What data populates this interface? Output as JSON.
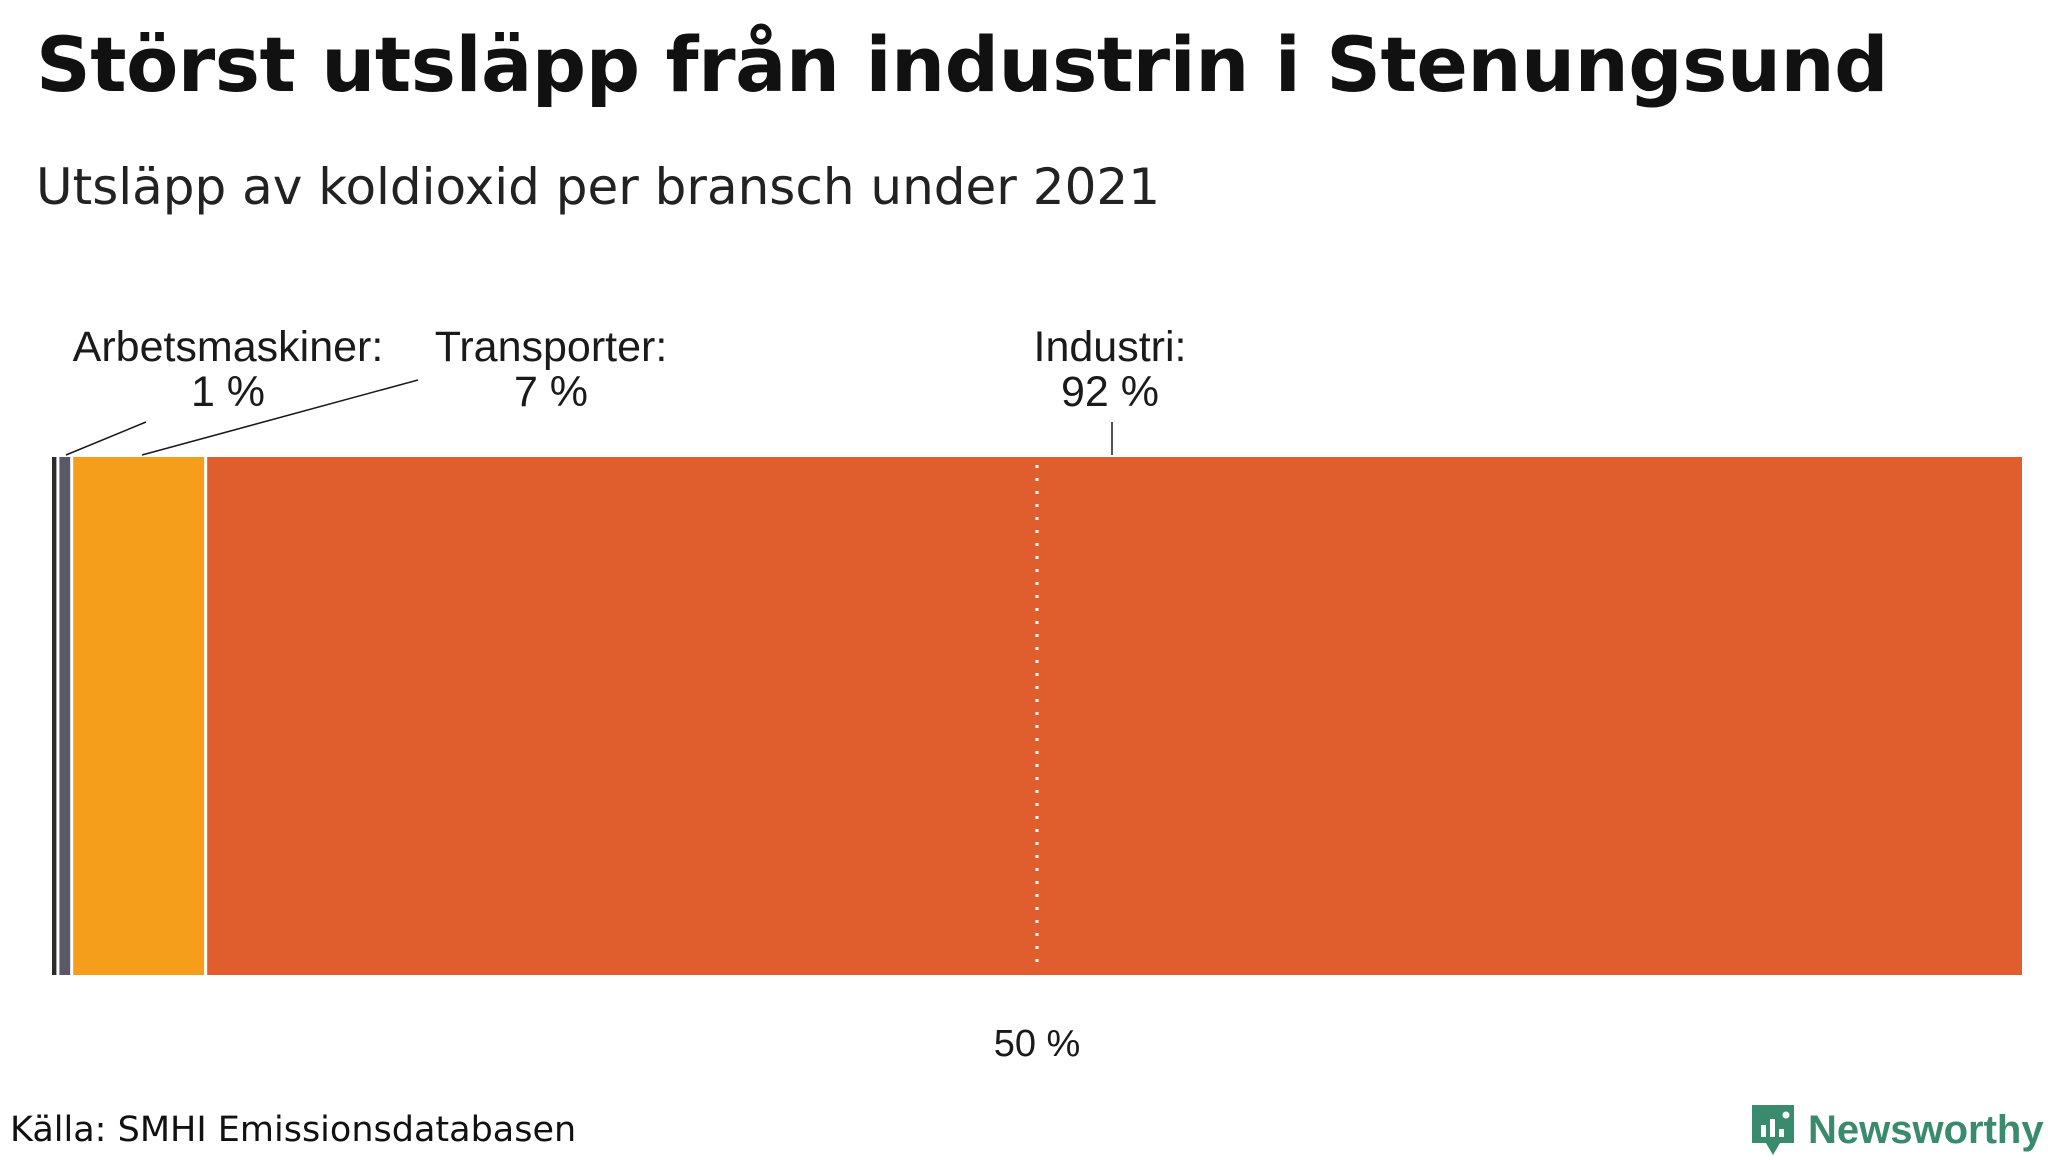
{
  "title": "Störst utsläpp från industrin i Stenungsund",
  "subtitle": "Utsläpp av koldioxid per bransch under 2021",
  "source": "Källa: SMHI Emissionsdatabasen",
  "brand": {
    "name": "Newsworthy",
    "icon": "newsworthy-logo-icon",
    "color": "#3a8a6e"
  },
  "chart_data": {
    "type": "bar",
    "orientation": "horizontal-stacked-100",
    "title": "Störst utsläpp från industrin i Stenungsund",
    "subtitle": "Utsläpp av koldioxid per bransch under 2021",
    "xlim": [
      0,
      100
    ],
    "unit": "%",
    "segments": [
      {
        "name": "",
        "value": 0.3,
        "label": "",
        "color": "#2b2b2b"
      },
      {
        "name": "Arbetsmaskiner",
        "value": 0.7,
        "label": "Arbetsmaskiner:",
        "value_label": "1 %",
        "color": "#5a5a66"
      },
      {
        "name": "Transporter",
        "value": 6.8,
        "label": "Transporter:",
        "value_label": "7 %",
        "color": "#f59e1b"
      },
      {
        "name": "Industri",
        "value": 92.2,
        "label": "Industri:",
        "value_label": "92 %",
        "color": "#e05e2e"
      }
    ],
    "reference_line": {
      "value": 50,
      "label": "50 %",
      "style": "dotted",
      "color": "#ffffff"
    }
  }
}
